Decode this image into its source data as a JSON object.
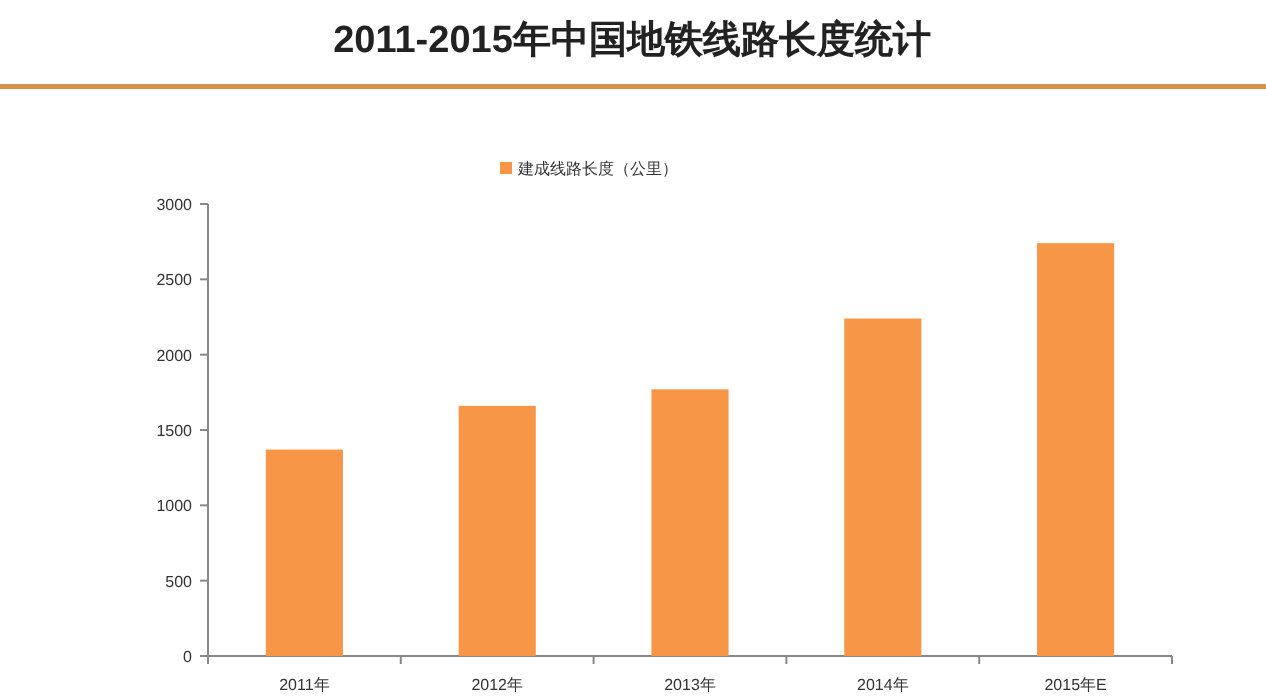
{
  "chart_data": {
    "type": "bar",
    "title": "2011-2015年中国地铁线路长度统计",
    "categories": [
      "2011年",
      "2012年",
      "2013年",
      "2014年",
      "2015年E"
    ],
    "series": [
      {
        "name": "建成线路长度（公里）",
        "color": "#f79646",
        "values": [
          1370,
          1660,
          1770,
          2240,
          2740
        ]
      }
    ],
    "ylim": [
      0,
      3000
    ],
    "yticks": [
      0,
      500,
      1000,
      1500,
      2000,
      2500,
      3000
    ],
    "grid": false,
    "legend": "top"
  }
}
